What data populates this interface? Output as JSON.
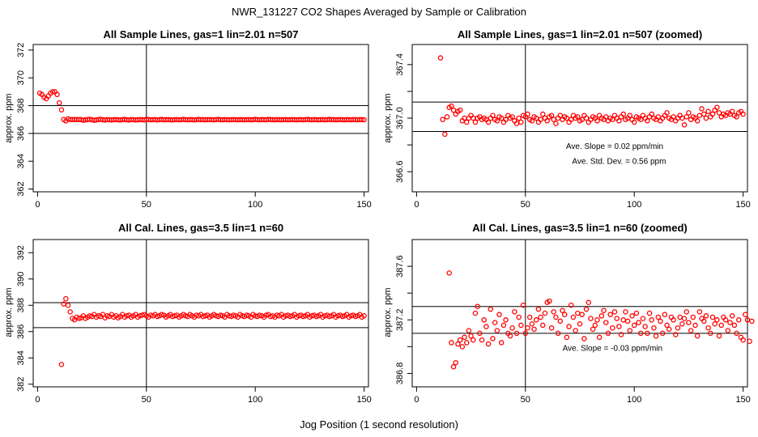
{
  "figure": {
    "title": "NWR_131227  CO2 Shapes Averaged by Sample or Calibration",
    "xlabel": "Jog Position (1 second resolution)"
  },
  "colors": {
    "points": "#ff0000",
    "axes": "#000000"
  },
  "chart_data": [
    {
      "type": "scatter",
      "title": "All Sample Lines, gas=1 lin=2.01 n=507",
      "ylabel": "approx. ppm",
      "xlim": [
        -2,
        152
      ],
      "ylim": [
        361.8,
        372.4
      ],
      "xticks": [
        0,
        50,
        100,
        150
      ],
      "yticks": [
        362,
        364,
        366,
        368,
        370,
        372
      ],
      "hlines": [
        366,
        368
      ],
      "vlines": [
        50
      ],
      "annotations": [],
      "series": [
        {
          "x_start": 1,
          "x_step": 1,
          "marker": "open-circle",
          "y": [
            368.9,
            368.8,
            368.6,
            368.5,
            368.7,
            368.9,
            369.0,
            369.0,
            368.8,
            368.2,
            367.7,
            367.0,
            366.9,
            367.05,
            367.0,
            367.0,
            367.0,
            367.0,
            367.0,
            367.0,
            366.95,
            366.98,
            367.0,
            367.02,
            366.98,
            366.95,
            366.97,
            367.0,
            367.02,
            366.98,
            366.96,
            367.0,
            366.98,
            366.97,
            366.99,
            367.0,
            366.98,
            366.97,
            366.99,
            367.01,
            366.98,
            366.96,
            367.0,
            366.99,
            366.97,
            366.98,
            367.0,
            366.99,
            366.97,
            367.02,
            367.0,
            366.98,
            366.99,
            367.0,
            366.97,
            366.99,
            367.01,
            366.98,
            366.99,
            367.0,
            366.98,
            366.97,
            366.99,
            367.0,
            366.98,
            366.99,
            367.01,
            366.99,
            366.98,
            367.0,
            366.99,
            366.97,
            366.99,
            367.01,
            366.99,
            367.0,
            366.98,
            366.99,
            367.0,
            366.99,
            366.98,
            367.0,
            367.01,
            366.99,
            366.98,
            367.0,
            366.99,
            366.98,
            366.99,
            367.0,
            366.99,
            366.98,
            367.0,
            366.99,
            366.98,
            366.99,
            367.0,
            366.98,
            366.99,
            367.01,
            366.99,
            366.98,
            367.0,
            366.99,
            366.98,
            367.01,
            367.0,
            366.99,
            366.98,
            367.0,
            366.99,
            366.98,
            366.99,
            367.0,
            366.98,
            366.99,
            367.0,
            366.99,
            366.98,
            367.0,
            366.99,
            366.98,
            367.0,
            367.01,
            366.99,
            366.98,
            367.0,
            366.99,
            366.98,
            366.99,
            367.0,
            366.98,
            366.99,
            367.01,
            366.99,
            367.0,
            366.98,
            366.99,
            367.0,
            366.99,
            366.98,
            367.0,
            366.99,
            366.98,
            367.0,
            366.99,
            366.98,
            367.0,
            366.99,
            366.98
          ]
        }
      ]
    },
    {
      "type": "scatter",
      "title": "All Sample Lines, gas=1 lin=2.01 n=507 (zoomed)",
      "ylabel": "approx. ppm",
      "xlim": [
        -2,
        152
      ],
      "ylim": [
        366.45,
        367.55
      ],
      "xticks": [
        0,
        50,
        100,
        150
      ],
      "yticks": [
        366.6,
        366.8,
        367.0,
        367.2,
        367.4
      ],
      "ytick_labels": [
        "366.6",
        "",
        "367.0",
        "",
        "367.4"
      ],
      "hlines": [
        366.9,
        367.12
      ],
      "vlines": [
        50
      ],
      "annotations": [
        {
          "text": "Ave. Slope =  0.02  ppm/min",
          "x": 91,
          "y": 366.77
        },
        {
          "text": "Ave. Std. Dev. =  0.56  ppm",
          "x": 93,
          "y": 366.66
        }
      ],
      "series": [
        {
          "x_start": 11,
          "x_step": 1,
          "marker": "open-circle",
          "y": [
            367.45,
            366.99,
            366.88,
            367.01,
            367.08,
            367.09,
            367.06,
            367.03,
            367.05,
            367.06,
            366.98,
            367.0,
            366.97,
            367.0,
            367.02,
            367.0,
            366.97,
            367.0,
            367.01,
            366.99,
            367.0,
            366.99,
            366.97,
            367.0,
            367.02,
            366.99,
            366.98,
            367.01,
            367.0,
            366.97,
            366.99,
            367.02,
            367.0,
            367.01,
            366.98,
            366.96,
            367.0,
            366.97,
            367.02,
            367.01,
            367.03,
            366.99,
            366.98,
            367.01,
            367.0,
            366.97,
            366.99,
            367.03,
            367.0,
            366.98,
            367.01,
            367.02,
            366.99,
            366.96,
            367.0,
            367.02,
            366.99,
            367.01,
            367.0,
            366.97,
            366.99,
            367.02,
            367.0,
            367.01,
            366.98,
            366.99,
            367.02,
            367.0,
            366.97,
            366.99,
            367.01,
            367.0,
            366.98,
            367.02,
            367.0,
            366.99,
            367.01,
            366.98,
            367.0,
            366.99,
            367.02,
            367.0,
            366.98,
            367.01,
            367.03,
            366.99,
            367.0,
            367.02,
            366.99,
            366.97,
            367.01,
            367.0,
            366.99,
            367.02,
            367.0,
            366.98,
            367.01,
            367.03,
            367.0,
            366.99,
            367.01,
            366.98,
            367.0,
            367.02,
            367.04,
            367.0,
            366.99,
            367.01,
            366.98,
            367.0,
            367.02,
            367.0,
            366.95,
            367.01,
            367.04,
            366.99,
            367.01,
            367.0,
            366.98,
            367.02,
            367.07,
            367.03,
            367.0,
            367.05,
            367.01,
            367.03,
            367.06,
            367.08,
            367.04,
            367.01,
            367.03,
            367.02,
            367.04,
            367.03,
            367.05,
            367.02,
            367.01,
            367.04,
            367.05,
            367.03
          ]
        }
      ]
    },
    {
      "type": "scatter",
      "title": "All Cal. Lines, gas=3.5 lin=1 n=60",
      "ylabel": "approx. ppm",
      "xlim": [
        -2,
        152
      ],
      "ylim": [
        381.8,
        393.0
      ],
      "xticks": [
        0,
        50,
        100,
        150
      ],
      "yticks": [
        382,
        384,
        386,
        388,
        390,
        392
      ],
      "hlines": [
        386.3,
        388.2
      ],
      "vlines": [
        50
      ],
      "annotations": [],
      "series": [
        {
          "x_start": 11,
          "x_step": 1,
          "marker": "open-circle",
          "y": [
            383.5,
            388.1,
            388.5,
            388.0,
            387.5,
            387.0,
            386.9,
            387.1,
            387.0,
            387.05,
            387.2,
            387.0,
            387.1,
            387.2,
            387.15,
            387.3,
            387.1,
            387.2,
            387.15,
            387.3,
            387.05,
            387.2,
            387.15,
            387.3,
            387.1,
            387.2,
            387.05,
            387.15,
            387.3,
            387.1,
            387.2,
            387.25,
            387.1,
            387.2,
            387.3,
            387.1,
            387.2,
            387.25,
            387.3,
            387.2,
            387.1,
            387.25,
            387.2,
            387.3,
            387.15,
            387.2,
            387.3,
            387.25,
            387.1,
            387.2,
            387.3,
            387.15,
            387.2,
            387.25,
            387.1,
            387.2,
            387.3,
            387.2,
            387.15,
            387.3,
            387.2,
            387.1,
            387.25,
            387.2,
            387.3,
            387.15,
            387.2,
            387.25,
            387.1,
            387.2,
            387.3,
            387.2,
            387.15,
            387.25,
            387.2,
            387.1,
            387.3,
            387.2,
            387.15,
            387.25,
            387.2,
            387.1,
            387.3,
            387.2,
            387.15,
            387.25,
            387.2,
            387.1,
            387.3,
            387.2,
            387.15,
            387.25,
            387.2,
            387.1,
            387.25,
            387.3,
            387.15,
            387.2,
            387.1,
            387.25,
            387.2,
            387.3,
            387.1,
            387.2,
            387.25,
            387.15,
            387.2,
            387.3,
            387.1,
            387.2,
            387.25,
            387.15,
            387.2,
            387.3,
            387.1,
            387.2,
            387.25,
            387.15,
            387.2,
            387.3,
            387.1,
            387.2,
            387.25,
            387.15,
            387.2,
            387.3,
            387.1,
            387.2,
            387.25,
            387.15,
            387.2,
            387.3,
            387.1,
            387.2,
            387.25,
            387.15,
            387.2,
            387.3,
            387.1,
            387.2
          ]
        }
      ]
    },
    {
      "type": "scatter",
      "title": "All Cal. Lines, gas=3.5 lin=1 n=60 (zoomed)",
      "ylabel": "approx. ppm",
      "xlim": [
        -2,
        152
      ],
      "ylim": [
        386.7,
        387.8
      ],
      "xticks": [
        0,
        50,
        100,
        150
      ],
      "yticks": [
        386.8,
        387.0,
        387.2,
        387.4,
        387.6
      ],
      "ytick_labels": [
        "386.8",
        "",
        "387.2",
        "",
        "387.6"
      ],
      "hlines": [
        387.1,
        387.3
      ],
      "vlines": [
        50
      ],
      "annotations": [
        {
          "text": "Ave. Slope =  -0.03  ppm/min",
          "x": 90,
          "y": 386.97
        }
      ],
      "series": [
        {
          "x_start": 15,
          "x_step": 1,
          "marker": "open-circle",
          "y": [
            387.55,
            387.03,
            386.85,
            386.88,
            387.02,
            387.05,
            387.0,
            387.07,
            387.03,
            387.12,
            387.08,
            387.05,
            387.25,
            387.3,
            387.1,
            387.05,
            387.2,
            387.15,
            387.02,
            387.28,
            387.06,
            387.18,
            387.12,
            387.24,
            387.03,
            387.16,
            387.2,
            387.1,
            387.08,
            387.14,
            387.26,
            387.1,
            387.22,
            387.16,
            387.31,
            387.1,
            387.14,
            387.22,
            387.17,
            387.13,
            387.2,
            387.28,
            387.22,
            387.16,
            387.25,
            387.33,
            387.34,
            387.14,
            387.26,
            387.22,
            387.1,
            387.19,
            387.27,
            387.24,
            387.07,
            387.15,
            387.31,
            387.22,
            387.12,
            387.25,
            387.17,
            387.24,
            387.06,
            387.28,
            387.33,
            387.21,
            387.13,
            387.16,
            387.2,
            387.07,
            387.23,
            387.27,
            387.18,
            387.1,
            387.24,
            387.14,
            387.26,
            387.21,
            387.15,
            387.09,
            387.2,
            387.26,
            387.19,
            387.12,
            387.23,
            387.16,
            387.25,
            387.18,
            387.1,
            387.21,
            387.15,
            387.1,
            387.25,
            387.2,
            387.14,
            387.08,
            387.22,
            387.19,
            387.1,
            387.24,
            387.16,
            387.13,
            387.22,
            387.2,
            387.09,
            387.14,
            387.22,
            387.17,
            387.21,
            387.26,
            387.18,
            387.12,
            387.22,
            387.16,
            387.08,
            387.26,
            387.21,
            387.19,
            387.23,
            387.14,
            387.1,
            387.22,
            387.17,
            387.2,
            387.08,
            387.16,
            387.22,
            387.2,
            387.12,
            387.18,
            387.23,
            387.16,
            387.1,
            387.2,
            387.07,
            387.05,
            387.24,
            387.2,
            387.04,
            387.19
          ]
        }
      ]
    }
  ]
}
